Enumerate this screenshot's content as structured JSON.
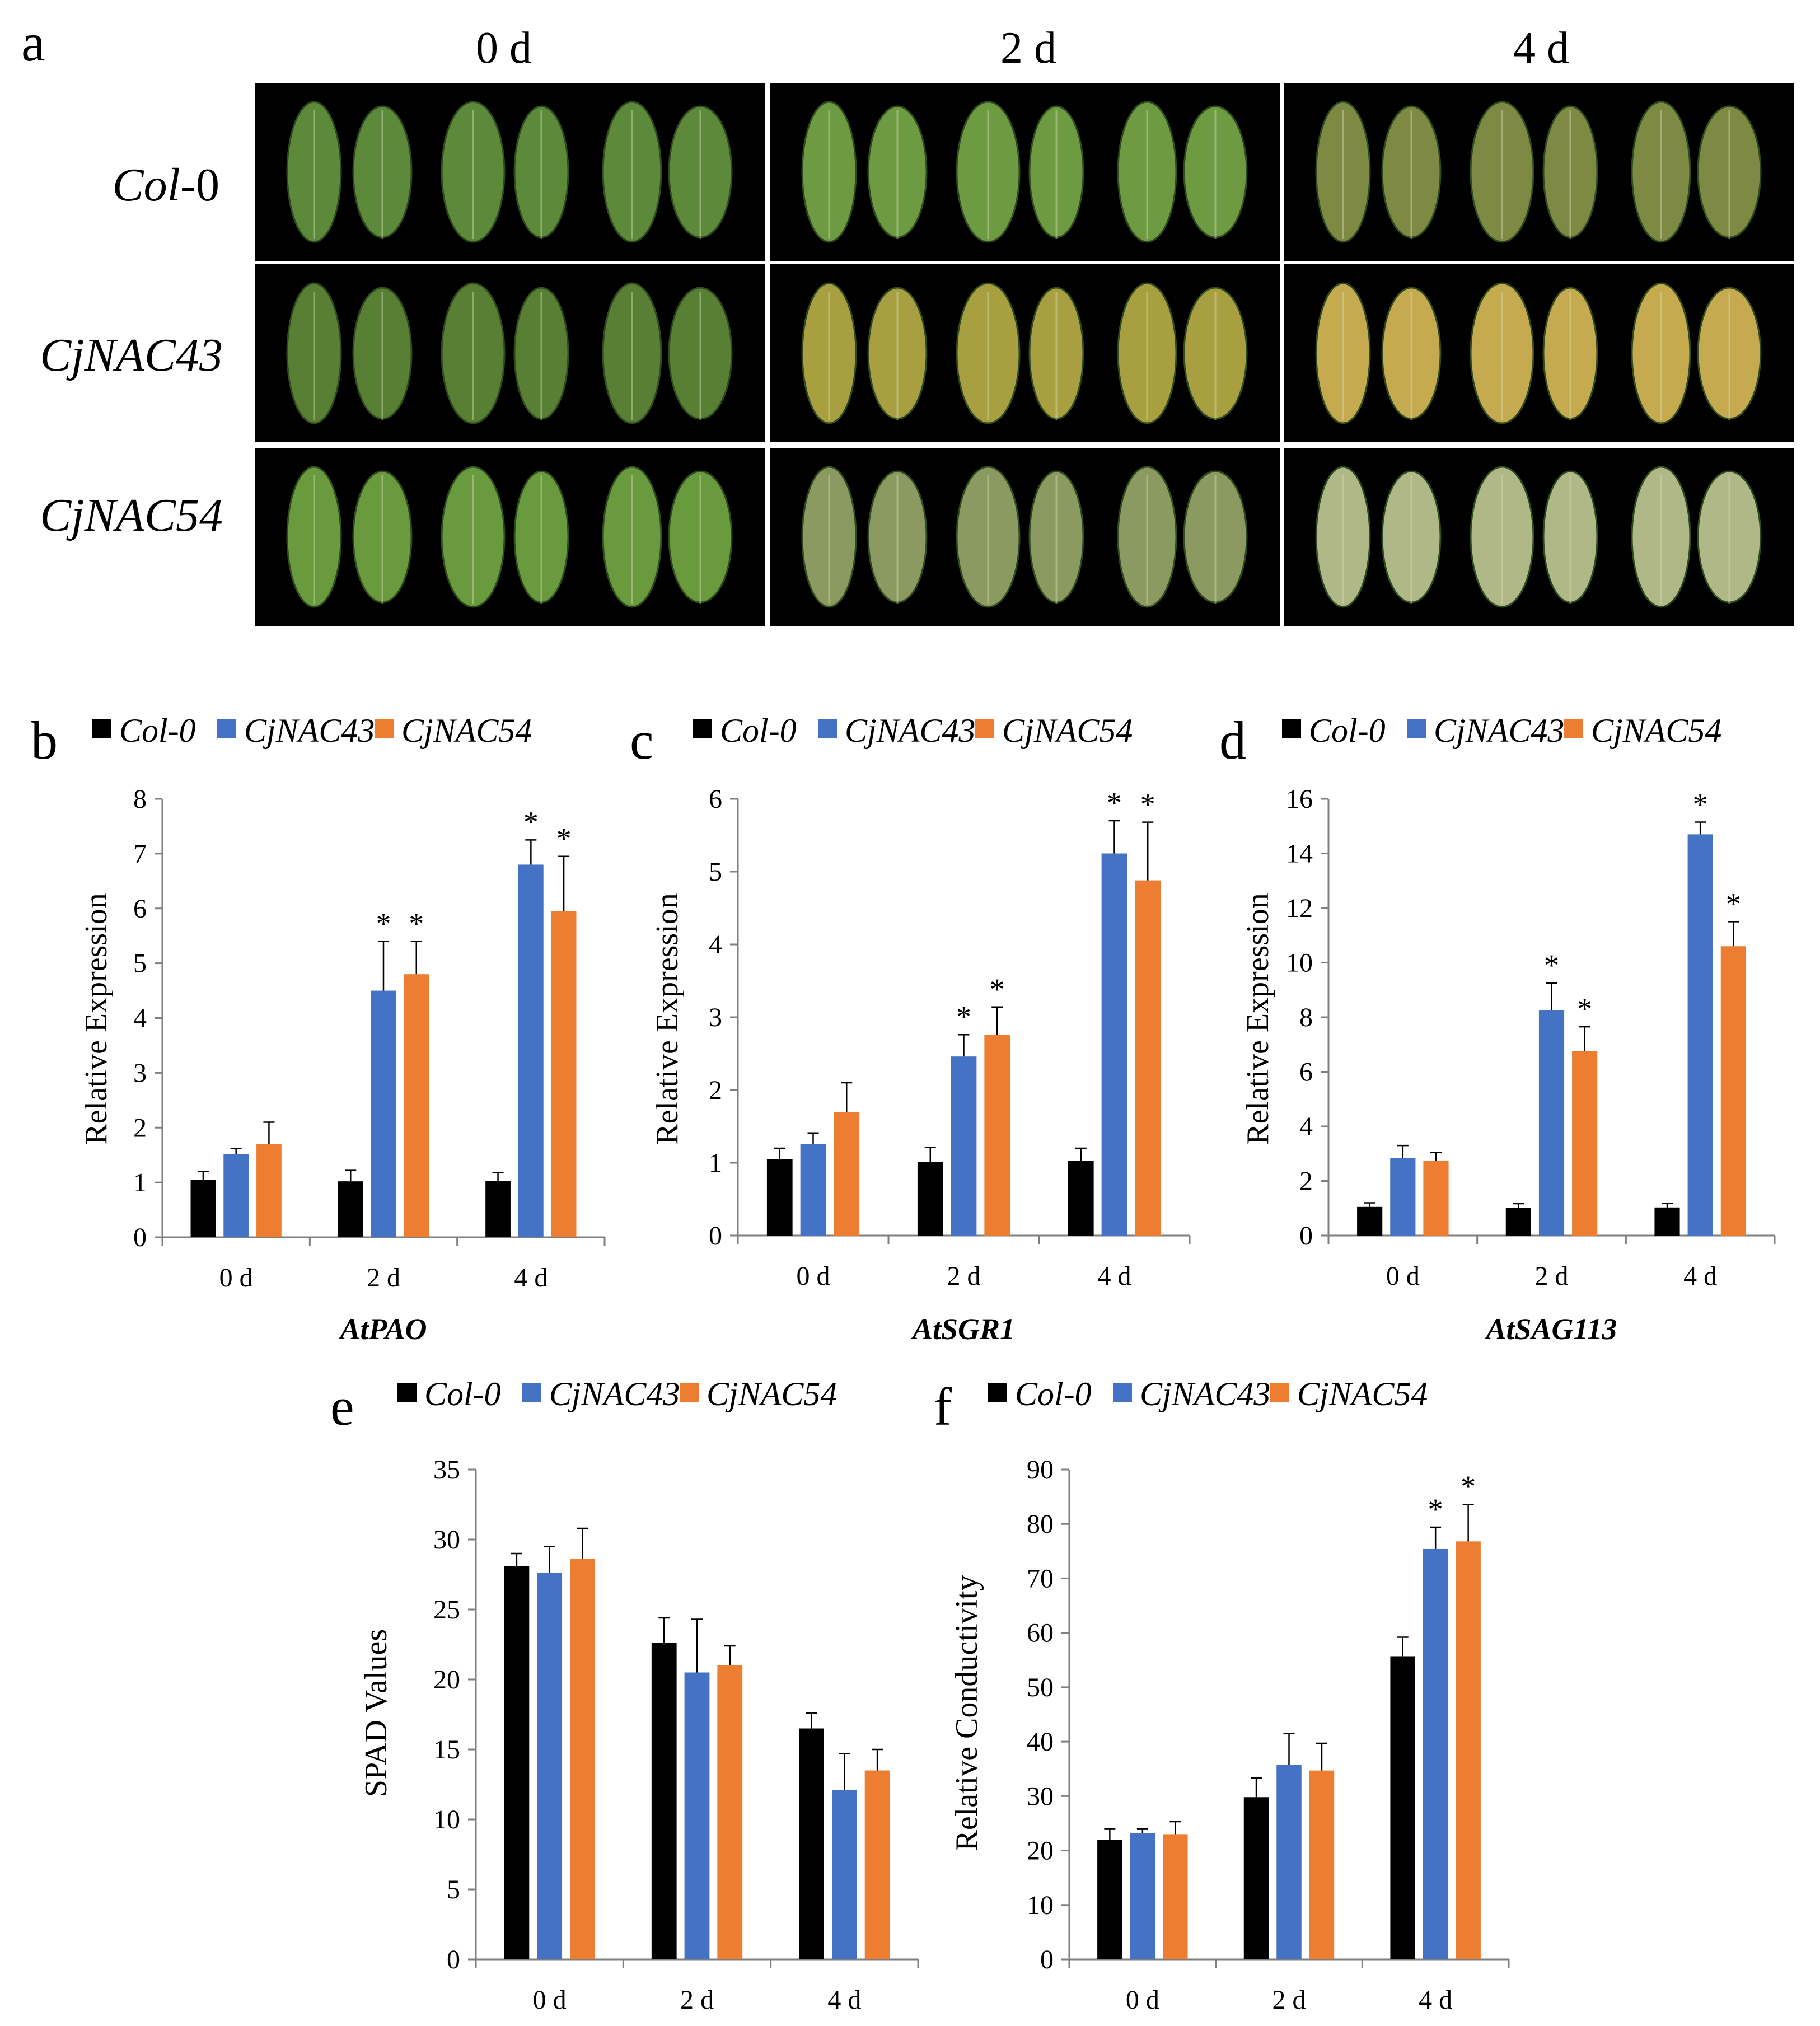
{
  "photo_panel": {
    "letter": "a",
    "columns": [
      "0 d",
      "2 d",
      "4 d"
    ],
    "rows": [
      {
        "label_italic": "Col",
        "label_plain": "-0"
      },
      {
        "label_italic": "CjNAC43",
        "label_plain": ""
      },
      {
        "label_italic": "CjNAC54",
        "label_plain": ""
      }
    ],
    "leaf_stage_colors": {
      "Col-0": [
        "#5c8a3a",
        "#6e9a42",
        "#7e8a44"
      ],
      "CjNAC43": [
        "#587f34",
        "#a8a040",
        "#c6aa50"
      ],
      "CjNAC54": [
        "#6a9a3e",
        "#8a9a60",
        "#b0b888"
      ]
    }
  },
  "colors": {
    "Col-0": "#000000",
    "CjNAC43": "#4472c4",
    "CjNAC54": "#ed7d31"
  },
  "chart_data": [
    {
      "panel": "b",
      "type": "bar",
      "categories": [
        "0 d",
        "2 d",
        "4 d"
      ],
      "series": [
        {
          "name": "Col-0",
          "values": [
            1.05,
            1.02,
            1.03
          ],
          "errors": [
            0.15,
            0.2,
            0.15
          ]
        },
        {
          "name": "CjNAC43",
          "values": [
            1.52,
            4.5,
            6.8
          ],
          "errors": [
            0.1,
            0.9,
            0.45
          ]
        },
        {
          "name": "CjNAC54",
          "values": [
            1.7,
            4.8,
            5.95
          ],
          "errors": [
            0.4,
            0.6,
            1.0
          ]
        }
      ],
      "significance": [
        {
          "series": 1,
          "category": 1
        },
        {
          "series": 2,
          "category": 1
        },
        {
          "series": 1,
          "category": 2
        },
        {
          "series": 2,
          "category": 2
        }
      ],
      "ylabel": "Relative Expression",
      "xlabel": "AtPAO",
      "ylim": [
        0,
        8
      ],
      "yticks": [
        0,
        1,
        2,
        3,
        4,
        5,
        6,
        7,
        8
      ]
    },
    {
      "panel": "c",
      "type": "bar",
      "categories": [
        "0 d",
        "2 d",
        "4 d"
      ],
      "series": [
        {
          "name": "Col-0",
          "values": [
            1.05,
            1.01,
            1.03
          ],
          "errors": [
            0.15,
            0.2,
            0.17
          ]
        },
        {
          "name": "CjNAC43",
          "values": [
            1.26,
            2.46,
            5.25
          ],
          "errors": [
            0.15,
            0.3,
            0.45
          ]
        },
        {
          "name": "CjNAC54",
          "values": [
            1.7,
            2.76,
            4.88
          ],
          "errors": [
            0.4,
            0.38,
            0.8
          ]
        }
      ],
      "significance": [
        {
          "series": 1,
          "category": 1
        },
        {
          "series": 2,
          "category": 1
        },
        {
          "series": 1,
          "category": 2
        },
        {
          "series": 2,
          "category": 2
        }
      ],
      "ylabel": "Relative Expression",
      "xlabel": "AtSGR1",
      "ylim": [
        0,
        6
      ],
      "yticks": [
        0,
        1,
        2,
        3,
        4,
        5,
        6
      ]
    },
    {
      "panel": "d",
      "type": "bar",
      "categories": [
        "0 d",
        "2 d",
        "4 d"
      ],
      "series": [
        {
          "name": "Col-0",
          "values": [
            1.05,
            1.02,
            1.03
          ],
          "errors": [
            0.15,
            0.15,
            0.15
          ]
        },
        {
          "name": "CjNAC43",
          "values": [
            2.85,
            8.25,
            14.7
          ],
          "errors": [
            0.45,
            1.0,
            0.45
          ]
        },
        {
          "name": "CjNAC54",
          "values": [
            2.75,
            6.75,
            10.6
          ],
          "errors": [
            0.3,
            0.9,
            0.9
          ]
        }
      ],
      "significance": [
        {
          "series": 1,
          "category": 1
        },
        {
          "series": 2,
          "category": 1
        },
        {
          "series": 1,
          "category": 2
        },
        {
          "series": 2,
          "category": 2
        }
      ],
      "ylabel": "Relative Expression",
      "xlabel": "AtSAG113",
      "ylim": [
        0,
        16
      ],
      "yticks": [
        0,
        2,
        4,
        6,
        8,
        10,
        12,
        14,
        16
      ]
    },
    {
      "panel": "e",
      "type": "bar",
      "categories": [
        "0 d",
        "2 d",
        "4 d"
      ],
      "series": [
        {
          "name": "Col-0",
          "values": [
            28.1,
            22.6,
            16.5
          ],
          "errors": [
            0.9,
            1.8,
            1.1
          ]
        },
        {
          "name": "CjNAC43",
          "values": [
            27.6,
            20.5,
            12.1
          ],
          "errors": [
            1.9,
            3.8,
            2.6
          ]
        },
        {
          "name": "CjNAC54",
          "values": [
            28.6,
            21.0,
            13.5
          ],
          "errors": [
            2.2,
            1.4,
            1.5
          ]
        }
      ],
      "significance": [],
      "ylabel": "SPAD Values",
      "xlabel": "",
      "ylim": [
        0,
        35
      ],
      "yticks": [
        0,
        5,
        10,
        15,
        20,
        25,
        30,
        35
      ]
    },
    {
      "panel": "f",
      "type": "bar",
      "categories": [
        "0 d",
        "2 d",
        "4 d"
      ],
      "series": [
        {
          "name": "Col-0",
          "values": [
            22,
            29.8,
            55.7
          ],
          "errors": [
            2.0,
            3.5,
            3.5
          ]
        },
        {
          "name": "CjNAC43",
          "values": [
            23.2,
            35.7,
            75.4
          ],
          "errors": [
            0.8,
            5.8,
            4.0
          ]
        },
        {
          "name": "CjNAC54",
          "values": [
            23,
            34.7,
            76.8
          ],
          "errors": [
            2.3,
            5.0,
            6.8
          ]
        }
      ],
      "significance": [
        {
          "series": 1,
          "category": 2
        },
        {
          "series": 2,
          "category": 2
        }
      ],
      "ylabel": "Relative Conductivity",
      "xlabel": "",
      "ylim": [
        0,
        90
      ],
      "yticks": [
        0,
        10,
        20,
        30,
        40,
        50,
        60,
        70,
        80,
        90
      ]
    }
  ],
  "significance_mark": "*"
}
